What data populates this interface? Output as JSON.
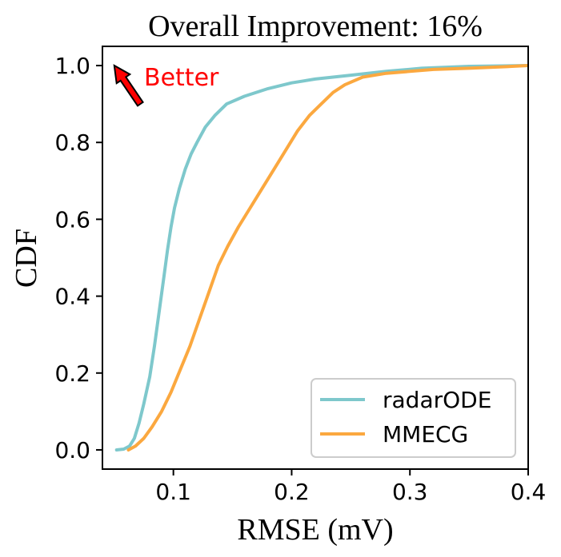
{
  "chart_data": {
    "type": "line",
    "title": "Overall Improvement: 16%",
    "xlabel": "RMSE (mV)",
    "ylabel": "CDF",
    "xlim": [
      0.04,
      0.4
    ],
    "ylim": [
      -0.05,
      1.05
    ],
    "x_ticks": [
      0.1,
      0.2,
      0.3,
      0.4
    ],
    "x_tick_labels": [
      "0.1",
      "0.2",
      "0.3",
      "0.4"
    ],
    "y_ticks": [
      0.0,
      0.2,
      0.4,
      0.6,
      0.8,
      1.0
    ],
    "y_tick_labels": [
      "0.0",
      "0.2",
      "0.4",
      "0.6",
      "0.8",
      "1.0"
    ],
    "grid": false,
    "legend_position": "lower-right",
    "annotation": {
      "text": "Better",
      "color": "#ff0000",
      "arrow_from": [
        0.072,
        0.9
      ],
      "arrow_to": [
        0.05,
        1.0
      ]
    },
    "series": [
      {
        "name": "radarODE",
        "color": "#7ec8cc",
        "x": [
          0.052,
          0.058,
          0.063,
          0.067,
          0.071,
          0.075,
          0.08,
          0.084,
          0.088,
          0.092,
          0.095,
          0.098,
          0.101,
          0.105,
          0.11,
          0.115,
          0.12,
          0.127,
          0.135,
          0.145,
          0.16,
          0.18,
          0.2,
          0.22,
          0.25,
          0.28,
          0.31,
          0.35,
          0.4
        ],
        "y": [
          0.0,
          0.002,
          0.01,
          0.03,
          0.07,
          0.12,
          0.19,
          0.27,
          0.36,
          0.45,
          0.52,
          0.58,
          0.63,
          0.68,
          0.73,
          0.77,
          0.8,
          0.84,
          0.87,
          0.9,
          0.92,
          0.94,
          0.955,
          0.965,
          0.975,
          0.985,
          0.993,
          0.998,
          1.0
        ]
      },
      {
        "name": "MMECG",
        "color": "#fba83f",
        "x": [
          0.062,
          0.068,
          0.075,
          0.082,
          0.09,
          0.098,
          0.106,
          0.114,
          0.122,
          0.13,
          0.138,
          0.146,
          0.155,
          0.165,
          0.175,
          0.185,
          0.195,
          0.205,
          0.215,
          0.225,
          0.235,
          0.245,
          0.26,
          0.28,
          0.3,
          0.32,
          0.35,
          0.38,
          0.4
        ],
        "y": [
          0.0,
          0.01,
          0.03,
          0.06,
          0.1,
          0.15,
          0.21,
          0.27,
          0.34,
          0.41,
          0.48,
          0.53,
          0.58,
          0.63,
          0.68,
          0.73,
          0.78,
          0.83,
          0.87,
          0.9,
          0.93,
          0.95,
          0.97,
          0.98,
          0.985,
          0.99,
          0.993,
          0.997,
          1.0
        ]
      }
    ]
  }
}
